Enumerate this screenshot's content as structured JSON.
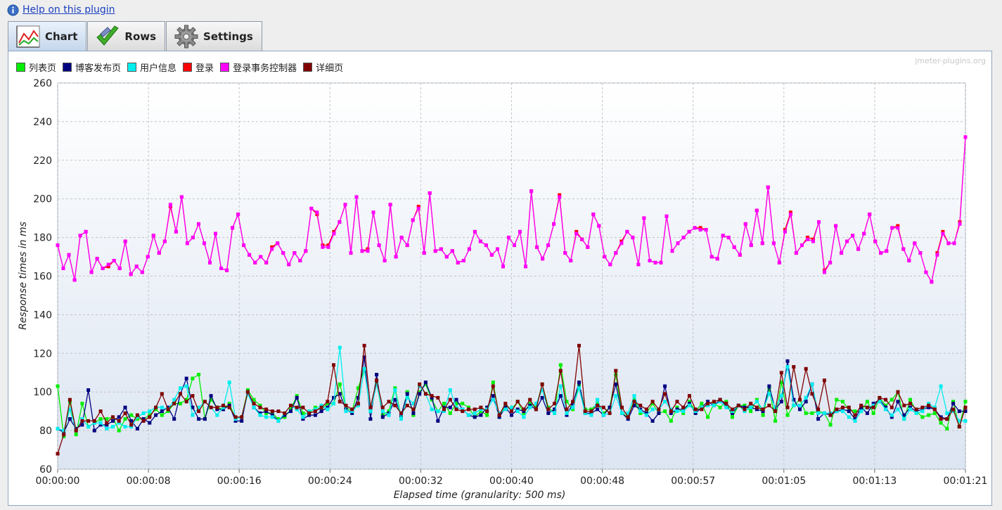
{
  "help": {
    "link_text": "Help on this plugin"
  },
  "tabs": [
    {
      "label": "Chart",
      "icon": "line-chart-icon",
      "active": true
    },
    {
      "label": "Rows",
      "icon": "checkmark-icon",
      "active": false
    },
    {
      "label": "Settings",
      "icon": "gear-icon",
      "active": false
    }
  ],
  "watermark": "jmeter-plugins.org",
  "chart_data": {
    "type": "line",
    "title": "",
    "xlabel": "Elapsed time (granularity: 500 ms)",
    "ylabel": "Response times in ms",
    "ylim": [
      60,
      260
    ],
    "yticks": [
      "60",
      "80",
      "100",
      "120",
      "140",
      "160",
      "180",
      "200",
      "220",
      "240",
      "260"
    ],
    "xticks": [
      "00:00:00",
      "00:00:08",
      "00:00:16",
      "00:00:24",
      "00:00:32",
      "00:00:40",
      "00:00:48",
      "00:00:57",
      "00:01:05",
      "00:01:13",
      "00:01:21"
    ],
    "x_seconds_range": [
      0,
      81
    ],
    "grid": true,
    "legend_position": "top-left",
    "series": [
      {
        "name": "列表页",
        "color": "#00ee00",
        "values": [
          103,
          77,
          95,
          78,
          94,
          82,
          84,
          86,
          86,
          87,
          80,
          86,
          88,
          86,
          86,
          88,
          91,
          88,
          90,
          94,
          94,
          96,
          107,
          109,
          86,
          96,
          92,
          91,
          94,
          86,
          87,
          101,
          96,
          93,
          89,
          89,
          86,
          87,
          91,
          98,
          89,
          89,
          92,
          91,
          94,
          94,
          104,
          92,
          90,
          102,
          112,
          90,
          105,
          88,
          90,
          102,
          87,
          100,
          88,
          100,
          104,
          96,
          90,
          94,
          89,
          94,
          94,
          92,
          87,
          90,
          88,
          105,
          87,
          93,
          91,
          95,
          89,
          94,
          92,
          104,
          92,
          89,
          114,
          95,
          91,
          104,
          91,
          91,
          94,
          89,
          92,
          109,
          89,
          87,
          96,
          89,
          89,
          94,
          89,
          90,
          85,
          92,
          89,
          95,
          90,
          94,
          87,
          94,
          92,
          95,
          87,
          93,
          93,
          90,
          96,
          88,
          102,
          85,
          105,
          88,
          93,
          96,
          89,
          89,
          90,
          89,
          83,
          96,
          95,
          91,
          90,
          90,
          95,
          89,
          97,
          93,
          96,
          100,
          86,
          96,
          90,
          87,
          88,
          89,
          84,
          81,
          95,
          82,
          95
        ]
      },
      {
        "name": "博客发布页",
        "color": "#000080",
        "values": [
          81,
          79,
          86,
          81,
          83,
          101,
          80,
          83,
          83,
          85,
          87,
          92,
          85,
          81,
          86,
          84,
          88,
          90,
          92,
          86,
          99,
          107,
          92,
          86,
          86,
          98,
          91,
          91,
          93,
          85,
          85,
          100,
          92,
          89,
          90,
          88,
          85,
          88,
          90,
          97,
          86,
          88,
          88,
          90,
          92,
          97,
          99,
          91,
          89,
          97,
          118,
          86,
          109,
          87,
          89,
          96,
          88,
          99,
          89,
          99,
          105,
          97,
          85,
          92,
          92,
          96,
          91,
          88,
          87,
          88,
          92,
          98,
          87,
          92,
          88,
          91,
          90,
          93,
          91,
          97,
          89,
          91,
          98,
          88,
          94,
          105,
          89,
          89,
          91,
          88,
          92,
          104,
          89,
          86,
          93,
          91,
          89,
          85,
          89,
          103,
          89,
          91,
          91,
          94,
          89,
          92,
          95,
          93,
          96,
          93,
          89,
          93,
          92,
          92,
          91,
          90,
          103,
          91,
          95,
          116,
          96,
          91,
          95,
          104,
          86,
          89,
          88,
          90,
          91,
          90,
          86,
          92,
          89,
          94,
          96,
          92,
          87,
          95,
          88,
          92,
          90,
          91,
          92,
          91,
          87,
          86,
          94,
          90,
          90
        ]
      },
      {
        "name": "用户信息",
        "color": "#00eeee",
        "values": [
          81,
          80,
          91,
          80,
          86,
          82,
          84,
          84,
          81,
          82,
          84,
          82,
          82,
          87,
          89,
          90,
          92,
          92,
          91,
          96,
          102,
          103,
          88,
          92,
          95,
          92,
          88,
          92,
          105,
          86,
          87,
          99,
          92,
          88,
          87,
          87,
          85,
          89,
          93,
          91,
          87,
          90,
          91,
          93,
          91,
          94,
          123,
          90,
          90,
          93,
          112,
          90,
          104,
          90,
          88,
          101,
          86,
          97,
          94,
          103,
          99,
          91,
          90,
          90,
          101,
          92,
          91,
          88,
          89,
          91,
          91,
          96,
          89,
          91,
          92,
          90,
          87,
          92,
          94,
          101,
          91,
          89,
          103,
          89,
          92,
          102,
          89,
          88,
          96,
          88,
          89,
          98,
          89,
          89,
          98,
          90,
          88,
          91,
          91,
          95,
          91,
          90,
          90,
          93,
          90,
          92,
          93,
          93,
          95,
          92,
          90,
          93,
          90,
          92,
          95,
          91,
          99,
          92,
          98,
          113,
          93,
          93,
          97,
          104,
          89,
          89,
          89,
          90,
          90,
          87,
          85,
          90,
          92,
          93,
          95,
          91,
          88,
          91,
          86,
          91,
          89,
          90,
          94,
          92,
          103,
          89,
          90,
          85,
          85
        ]
      },
      {
        "name": "登录",
        "color": "#ff0000",
        "values": [
          176,
          164,
          171,
          158,
          181,
          183,
          162,
          169,
          164,
          165,
          168,
          164,
          178,
          161,
          165,
          162,
          170,
          181,
          172,
          178,
          196,
          183,
          201,
          177,
          180,
          187,
          177,
          167,
          182,
          164,
          163,
          185,
          192,
          176,
          171,
          167,
          170,
          167,
          175,
          177,
          172,
          166,
          172,
          168,
          173,
          195,
          192,
          176,
          176,
          183,
          188,
          197,
          172,
          201,
          173,
          174,
          193,
          176,
          168,
          197,
          170,
          180,
          176,
          189,
          196,
          172,
          203,
          173,
          174,
          170,
          173,
          167,
          168,
          174,
          183,
          178,
          176,
          171,
          174,
          165,
          180,
          176,
          183,
          165,
          204,
          175,
          169,
          176,
          187,
          202,
          172,
          168,
          183,
          179,
          175,
          192,
          186,
          170,
          166,
          172,
          178,
          183,
          180,
          166,
          190,
          168,
          167,
          167,
          191,
          173,
          177,
          180,
          183,
          185,
          185,
          184,
          170,
          169,
          181,
          180,
          175,
          171,
          187,
          176,
          194,
          177,
          206,
          177,
          167,
          184,
          193,
          172,
          176,
          180,
          179,
          188,
          163,
          167,
          186,
          172,
          178,
          181,
          174,
          182,
          192,
          178,
          172,
          173,
          185,
          186,
          174,
          168,
          177,
          172,
          162,
          157,
          172,
          183,
          177,
          177,
          188,
          232
        ]
      },
      {
        "name": "登录事务控制器",
        "color": "#ff00ff",
        "values": [
          176,
          164,
          171,
          158,
          181,
          183,
          162,
          169,
          164,
          166,
          168,
          164,
          178,
          161,
          165,
          162,
          170,
          181,
          172,
          178,
          197,
          183,
          201,
          177,
          180,
          187,
          177,
          167,
          182,
          164,
          163,
          185,
          192,
          176,
          171,
          167,
          170,
          167,
          174,
          177,
          172,
          166,
          172,
          168,
          173,
          195,
          193,
          175,
          175,
          182,
          188,
          197,
          172,
          201,
          173,
          173,
          193,
          176,
          168,
          197,
          170,
          180,
          176,
          189,
          195,
          172,
          203,
          173,
          174,
          170,
          173,
          167,
          168,
          174,
          183,
          178,
          176,
          171,
          174,
          165,
          180,
          176,
          183,
          165,
          204,
          175,
          169,
          176,
          187,
          201,
          172,
          168,
          182,
          179,
          175,
          192,
          186,
          170,
          166,
          172,
          177,
          183,
          180,
          166,
          190,
          168,
          167,
          167,
          191,
          173,
          177,
          180,
          183,
          185,
          184,
          184,
          170,
          169,
          181,
          180,
          175,
          171,
          187,
          176,
          194,
          177,
          206,
          177,
          167,
          183,
          192,
          172,
          176,
          179,
          178,
          188,
          162,
          167,
          186,
          172,
          178,
          181,
          174,
          182,
          192,
          178,
          172,
          173,
          185,
          185,
          174,
          168,
          177,
          172,
          162,
          157,
          171,
          182,
          177,
          177,
          187,
          232
        ]
      },
      {
        "name": "详细页",
        "color": "#800000",
        "values": [
          68,
          78,
          96,
          80,
          85,
          85,
          85,
          90,
          84,
          87,
          85,
          89,
          83,
          88,
          85,
          87,
          92,
          99,
          91,
          94,
          99,
          95,
          98,
          90,
          95,
          92,
          92,
          93,
          92,
          87,
          87,
          100,
          94,
          92,
          91,
          90,
          90,
          89,
          93,
          92,
          92,
          89,
          90,
          92,
          95,
          114,
          95,
          93,
          91,
          94,
          124,
          92,
          106,
          92,
          95,
          93,
          89,
          93,
          91,
          104,
          99,
          98,
          97,
          91,
          96,
          91,
          90,
          91,
          91,
          92,
          90,
          103,
          88,
          94,
          90,
          95,
          91,
          96,
          91,
          104,
          91,
          94,
          111,
          91,
          95,
          124,
          90,
          90,
          93,
          92,
          89,
          111,
          92,
          87,
          95,
          93,
          91,
          95,
          91,
          99,
          90,
          95,
          92,
          98,
          91,
          91,
          94,
          95,
          96,
          94,
          91,
          93,
          91,
          94,
          92,
          91,
          93,
          90,
          110,
          92,
          113,
          96,
          112,
          99,
          91,
          106,
          88,
          91,
          92,
          92,
          88,
          93,
          92,
          92,
          97,
          96,
          92,
          100,
          93,
          94,
          91,
          92,
          93,
          91,
          86,
          86,
          91,
          82,
          92
        ]
      }
    ]
  }
}
